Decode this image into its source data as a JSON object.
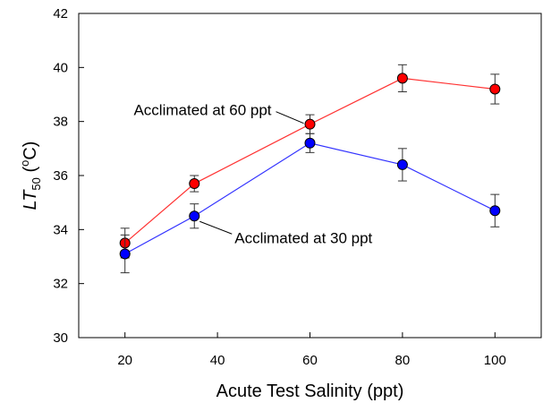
{
  "chart_data": {
    "type": "scatter",
    "xlabel": "Acute Test Salinity (ppt)",
    "ylabel": {
      "prefix": "LT",
      "subscript": "50",
      "open": " (",
      "superscript": "o",
      "unit": "C)"
    },
    "xlim": [
      10,
      110
    ],
    "ylim": [
      30,
      42
    ],
    "x_ticks": [
      20,
      40,
      60,
      80,
      100
    ],
    "y_ticks": [
      30,
      32,
      34,
      36,
      38,
      40,
      42
    ],
    "grid": false,
    "series": [
      {
        "name": "Acclimated at 60 ppt",
        "color": "#ff0000",
        "line_color": "#ff3333",
        "x": [
          20,
          35,
          60,
          80,
          100
        ],
        "y": [
          33.5,
          35.7,
          37.9,
          39.6,
          39.2
        ],
        "err": [
          0.55,
          0.3,
          0.35,
          0.5,
          0.55
        ]
      },
      {
        "name": "Acclimated at 30 ppt",
        "color": "#0000ff",
        "line_color": "#3333ff",
        "x": [
          20,
          35,
          60,
          80,
          100
        ],
        "y": [
          33.1,
          34.5,
          37.2,
          36.4,
          34.7
        ],
        "err": [
          0.7,
          0.45,
          0.35,
          0.6,
          0.6
        ]
      }
    ],
    "annotations": [
      {
        "text": "Acclimated at 60 ppt",
        "series": 0,
        "point": 2,
        "placement": "left-above"
      },
      {
        "text": "Acclimated at 30 ppt",
        "series": 1,
        "point": 1,
        "placement": "right-below"
      }
    ]
  }
}
